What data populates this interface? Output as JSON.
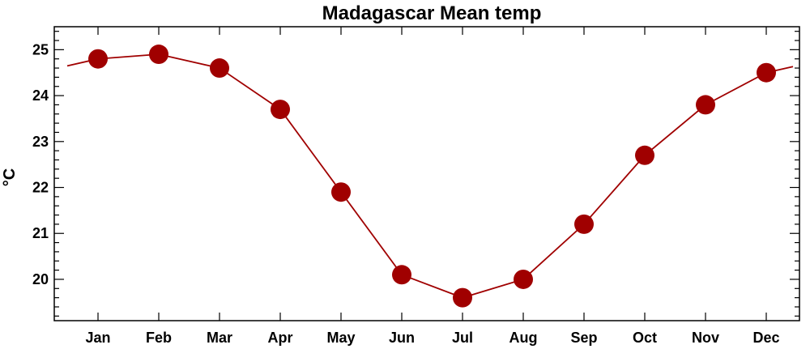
{
  "chart_data": {
    "type": "line",
    "title": "Madagascar Mean temp",
    "xlabel": "",
    "ylabel": "°C",
    "categories": [
      "Jan",
      "Feb",
      "Mar",
      "Apr",
      "May",
      "Jun",
      "Jul",
      "Aug",
      "Sep",
      "Oct",
      "Nov",
      "Dec"
    ],
    "series": [
      {
        "values": [
          24.8,
          24.9,
          24.6,
          23.7,
          21.9,
          20.1,
          19.6,
          20.0,
          21.2,
          22.7,
          23.8,
          24.5
        ]
      }
    ],
    "ylim": [
      19.1,
      25.5
    ],
    "yticks": [
      20,
      21,
      22,
      23,
      24,
      25
    ],
    "grid": false,
    "line_color": "#a00000",
    "marker_color": "#a00000",
    "marker": "circle"
  }
}
